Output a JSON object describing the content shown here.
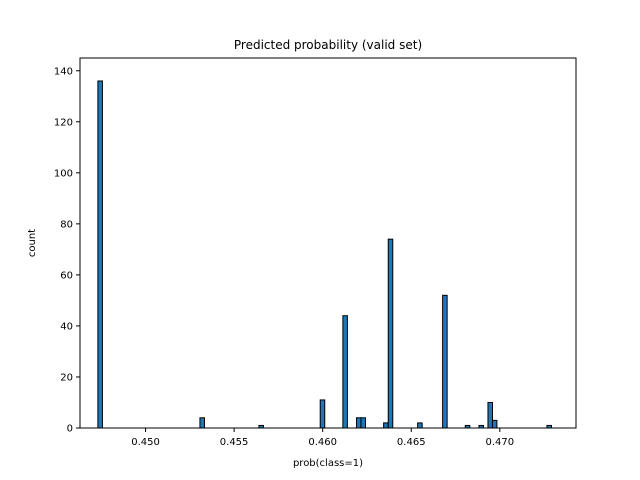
{
  "chart_data": {
    "type": "bar",
    "title": "Predicted probability (valid set)",
    "xlabel": "prob(class=1)",
    "ylabel": "count",
    "xlim": [
      0.4463,
      0.4743
    ],
    "ylim": [
      0,
      145
    ],
    "xticks": [
      "0.450",
      "0.455",
      "0.460",
      "0.465",
      "0.470"
    ],
    "xtick_values": [
      0.45,
      0.455,
      0.46,
      0.465,
      0.47
    ],
    "yticks": [
      "0",
      "20",
      "40",
      "60",
      "80",
      "100",
      "120",
      "140"
    ],
    "ytick_values": [
      0,
      20,
      40,
      60,
      80,
      100,
      120,
      140
    ],
    "bar_color": "#1f77b4",
    "edge_color": "#000000",
    "bin_width": 0.000256,
    "bins": [
      {
        "x": 0.44731,
        "count": 136
      },
      {
        "x": 0.45307,
        "count": 4
      },
      {
        "x": 0.4564,
        "count": 1
      },
      {
        "x": 0.45986,
        "count": 11
      },
      {
        "x": 0.46114,
        "count": 44
      },
      {
        "x": 0.46191,
        "count": 4
      },
      {
        "x": 0.46216,
        "count": 4
      },
      {
        "x": 0.46344,
        "count": 2
      },
      {
        "x": 0.4637,
        "count": 74
      },
      {
        "x": 0.46536,
        "count": 2
      },
      {
        "x": 0.46677,
        "count": 52
      },
      {
        "x": 0.46805,
        "count": 1
      },
      {
        "x": 0.46882,
        "count": 1
      },
      {
        "x": 0.46933,
        "count": 10
      },
      {
        "x": 0.46958,
        "count": 3
      },
      {
        "x": 0.47266,
        "count": 1
      }
    ]
  }
}
